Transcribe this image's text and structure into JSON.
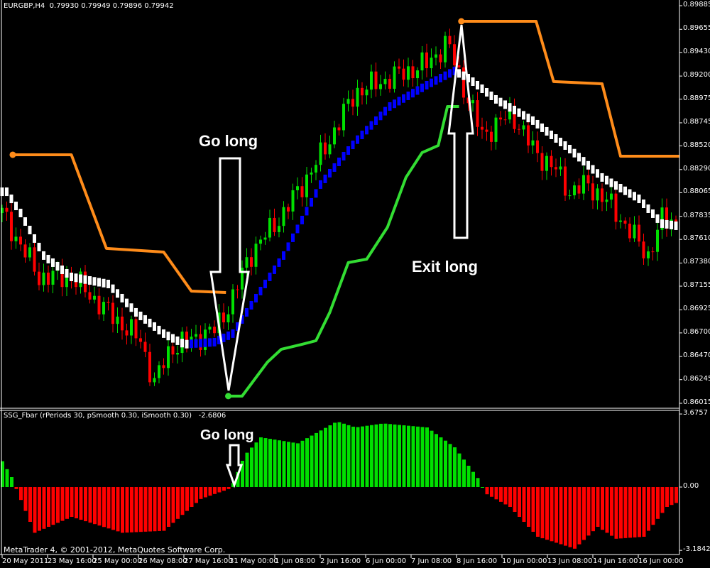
{
  "header": {
    "symbol": "EURGBP,H4",
    "ohlc": "0.79930 0.79949 0.79896 0.79942"
  },
  "indicator": {
    "title": "SSG_Fbar  (rPeriods 30, pSmooth 0.30, iSmooth 0.30)",
    "value": "-2.6806"
  },
  "copyright": "MetaTrader 4, © 2001-2012, MetaQuotes Software Corp.",
  "annotations": {
    "go_long_main": "Go long",
    "exit_long": "Exit long",
    "go_long_sub": "Go long"
  },
  "colors": {
    "bull": "#00e000",
    "bear": "#ff0000",
    "upper_stop": "#ff8c1a",
    "lower_stop": "#33dd33",
    "mid_up": "#0000ff",
    "mid_down": "#ffffff",
    "axis": "#ffffff"
  },
  "chart_data": {
    "type": "candlestick",
    "price_axis": {
      "ticks": [
        "0.89885",
        "0.89655",
        "0.89430",
        "0.89200",
        "0.88975",
        "0.88745",
        "0.88520",
        "0.88290",
        "0.88065",
        "0.87835",
        "0.87610",
        "0.87380",
        "0.87155",
        "0.86925",
        "0.86700",
        "0.86470",
        "0.86245",
        "0.86015"
      ],
      "range": [
        0.86015,
        0.89885
      ]
    },
    "time_axis": [
      "20 May 2011",
      "23 May 16:00",
      "25 May 00:00",
      "26 May 08:00",
      "27 May 16:00",
      "31 May 00:00",
      "1 Jun 08:00",
      "2 Jun 16:00",
      "6 Jun 00:00",
      "7 Jun 08:00",
      "8 Jun 16:00",
      "10 Jun 00:00",
      "13 Jun 08:00",
      "14 Jun 16:00",
      "16 Jun 00:00"
    ],
    "bars": 147,
    "price_path": [
      [
        0,
        0.87867
      ],
      [
        8,
        0.87245
      ],
      [
        15,
        0.87245
      ],
      [
        23,
        0.869
      ],
      [
        30,
        0.86624
      ],
      [
        33,
        0.86209
      ],
      [
        36.5,
        0.86555
      ],
      [
        46,
        0.86727
      ],
      [
        50,
        0.87038
      ],
      [
        53.5,
        0.87453
      ],
      [
        61,
        0.87867
      ],
      [
        69,
        0.8842
      ],
      [
        76.5,
        0.89042
      ],
      [
        84,
        0.8918
      ],
      [
        92,
        0.89318
      ],
      [
        96.5,
        0.89526
      ],
      [
        101,
        0.88973
      ],
      [
        104,
        0.88627
      ],
      [
        110.5,
        0.88835
      ],
      [
        115,
        0.88489
      ],
      [
        120,
        0.88282
      ],
      [
        123,
        0.88074
      ],
      [
        127,
        0.88144
      ],
      [
        132,
        0.87936
      ],
      [
        136.5,
        0.8766
      ],
      [
        140,
        0.87453
      ],
      [
        143,
        0.87798
      ],
      [
        146,
        0.87798
      ]
    ],
    "upper_stop": [
      [
        [
          2.3,
          0.88434
        ],
        [
          15,
          0.88434
        ],
        [
          22.6,
          0.87522
        ],
        [
          35,
          0.87487
        ],
        [
          41,
          0.87107
        ],
        [
          48.5,
          0.87093
        ]
      ],
      [
        [
          99.5,
          0.89733
        ],
        [
          115.7,
          0.89733
        ],
        [
          119.5,
          0.89146
        ],
        [
          130,
          0.89125
        ],
        [
          134,
          0.8842
        ],
        [
          146.8,
          0.8842
        ]
      ]
    ],
    "lower_stop": [
      [
        49,
        0.86085
      ],
      [
        52,
        0.86085
      ],
      [
        57.5,
        0.86416
      ],
      [
        60.5,
        0.86541
      ],
      [
        65,
        0.86589
      ],
      [
        68,
        0.86624
      ],
      [
        71,
        0.869
      ],
      [
        75,
        0.87384
      ],
      [
        79,
        0.87418
      ],
      [
        83.5,
        0.87729
      ],
      [
        87.5,
        0.88213
      ],
      [
        91,
        0.88455
      ],
      [
        94.5,
        0.88524
      ],
      [
        96.5,
        0.88904
      ],
      [
        99,
        0.88904
      ]
    ],
    "mid_line": [
      [
        1,
        0.88074
      ],
      [
        4,
        0.87867
      ],
      [
        9,
        0.87453
      ],
      [
        15,
        0.87245
      ],
      [
        23,
        0.87176
      ],
      [
        29,
        0.869
      ],
      [
        35,
        0.86693
      ],
      [
        39.5,
        0.86589
      ],
      [
        46,
        0.8661
      ],
      [
        50,
        0.86693
      ],
      [
        55,
        0.87038
      ],
      [
        61,
        0.87453
      ],
      [
        69,
        0.88144
      ],
      [
        76.5,
        0.88558
      ],
      [
        84,
        0.88904
      ],
      [
        92,
        0.89111
      ],
      [
        98,
        0.89249
      ],
      [
        101,
        0.8918
      ],
      [
        107,
        0.88973
      ],
      [
        115,
        0.88766
      ],
      [
        123,
        0.88489
      ],
      [
        130,
        0.88213
      ],
      [
        138,
        0.88005
      ],
      [
        143,
        0.87764
      ],
      [
        146,
        0.87743
      ]
    ],
    "histogram_axis": {
      "max_label": "3.6757",
      "zero_label": "0.00",
      "min_label": "-3.1842"
    },
    "histogram": [
      [
        0,
        1.3
      ],
      [
        2,
        0.5
      ],
      [
        3,
        -0.1
      ],
      [
        7,
        -2.3
      ],
      [
        15,
        -1.5
      ],
      [
        26,
        -2.3
      ],
      [
        35,
        -2.2
      ],
      [
        43,
        -0.6
      ],
      [
        49,
        -0.1
      ],
      [
        50,
        0.2
      ],
      [
        52.5,
        1.6
      ],
      [
        56,
        2.5
      ],
      [
        64,
        2.2
      ],
      [
        72.5,
        3.3
      ],
      [
        76.5,
        3.0
      ],
      [
        82.5,
        3.2
      ],
      [
        92,
        3.0
      ],
      [
        98,
        2.0
      ],
      [
        103.5,
        0.3
      ],
      [
        104.5,
        -0.3
      ],
      [
        110,
        -1.0
      ],
      [
        116,
        -2.5
      ],
      [
        124,
        -3.1
      ],
      [
        129,
        -2.0
      ],
      [
        133,
        -2.6
      ],
      [
        139,
        -2.5
      ],
      [
        144,
        -1.0
      ],
      [
        146,
        -0.8
      ]
    ]
  }
}
